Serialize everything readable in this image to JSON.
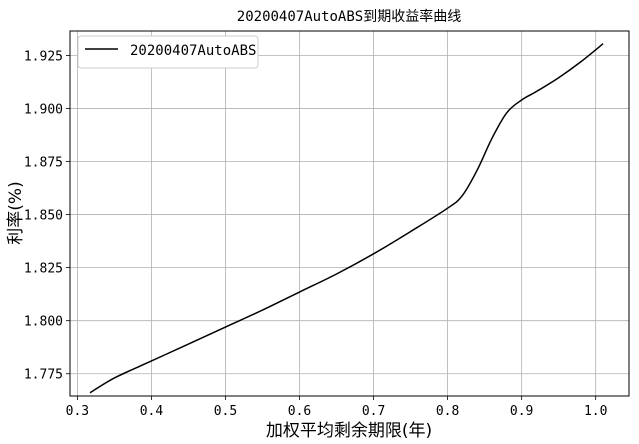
{
  "chart_data": {
    "type": "line",
    "title": "20200407AutoABS到期收益率曲线",
    "xlabel": "加权平均剩余期限(年)",
    "ylabel": "利率(%)",
    "xlim": [
      0.29,
      1.045
    ],
    "ylim": [
      1.7645,
      1.9365
    ],
    "xticks": [
      0.3,
      0.4,
      0.5,
      0.6,
      0.7,
      0.8,
      0.9,
      1.0
    ],
    "xtick_labels": [
      "0.3",
      "0.4",
      "0.5",
      "0.6",
      "0.7",
      "0.8",
      "0.9",
      "1.0"
    ],
    "yticks": [
      1.775,
      1.8,
      1.825,
      1.85,
      1.875,
      1.9,
      1.925
    ],
    "ytick_labels": [
      "1.775",
      "1.800",
      "1.825",
      "1.850",
      "1.875",
      "1.900",
      "1.925"
    ],
    "grid": true,
    "legend_position": "top-left",
    "series": [
      {
        "name": "20200407AutoABS",
        "color": "#000000",
        "x": [
          0.317,
          0.35,
          0.4,
          0.45,
          0.5,
          0.55,
          0.6,
          0.65,
          0.7,
          0.75,
          0.8,
          0.82,
          0.84,
          0.86,
          0.88,
          0.9,
          0.92,
          0.95,
          0.98,
          1.01
        ],
        "y": [
          1.766,
          1.773,
          1.781,
          1.789,
          1.797,
          1.805,
          1.8135,
          1.822,
          1.8315,
          1.842,
          1.853,
          1.859,
          1.871,
          1.886,
          1.898,
          1.904,
          1.908,
          1.9145,
          1.922,
          1.9305
        ]
      }
    ]
  }
}
